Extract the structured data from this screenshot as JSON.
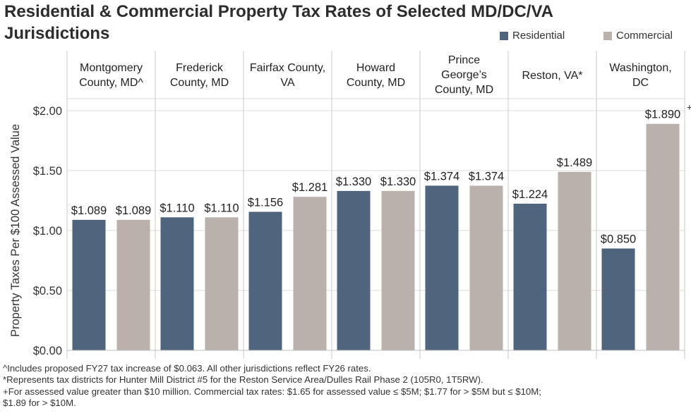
{
  "title_line1": "Residential & Commercial Property Tax Rates of Selected MD/DC/VA",
  "title_line2": "Jurisdictions",
  "colors": {
    "residential": "#4f657e",
    "commercial": "#bab0ac",
    "grid": "#dcdcdc",
    "divider": "#c8c8c8"
  },
  "chart_data": {
    "type": "bar",
    "ylabel": "Property Taxes Per $100 Assessed Value",
    "ylim": [
      0,
      2.0
    ],
    "yticks": [
      "$0.00",
      "$0.50",
      "$1.00",
      "$1.50",
      "$2.00"
    ],
    "ytick_values": [
      0,
      0.5,
      1.0,
      1.5,
      2.0
    ],
    "grid": true,
    "legend_position": "top-right",
    "categories": [
      [
        "Montgomery",
        "County, MD^"
      ],
      [
        "Frederick",
        "County, MD"
      ],
      [
        "Fairfax County,",
        "VA"
      ],
      [
        "Howard",
        "County, MD"
      ],
      [
        "Prince",
        "George’s",
        "County, MD"
      ],
      [
        "Reston, VA*"
      ],
      [
        "Washington,",
        "DC"
      ]
    ],
    "series": [
      {
        "name": "Residential",
        "values": [
          1.089,
          1.11,
          1.156,
          1.33,
          1.374,
          1.224,
          0.85
        ],
        "labels": [
          "$1.089",
          "$1.110",
          "$1.156",
          "$1.330",
          "$1.374",
          "$1.224",
          "$0.850"
        ]
      },
      {
        "name": "Commercial",
        "values": [
          1.089,
          1.11,
          1.281,
          1.33,
          1.374,
          1.489,
          1.89
        ],
        "labels": [
          "$1.089",
          "$1.110",
          "$1.281",
          "$1.330",
          "$1.374",
          "$1.489",
          "$1.890"
        ]
      }
    ],
    "annotations": [
      {
        "category_index": 6,
        "series": "Commercial",
        "text": "+"
      }
    ]
  },
  "footnotes": [
    "^Includes proposed FY27 tax increase of $0.063. All other jurisdictions reflect FY26 rates.",
    "*Represents tax districts for Hunter Mill District #5 for the Reston Service Area/Dulles Rail Phase 2 (105R0, 1T5RW).",
    "+For assessed value greater than $10 million. Commercial tax rates: $1.65 for assessed value ≤ $5M; $1.77 for > $5M but ≤ $10M;",
    "$1.89 for > $10M."
  ]
}
